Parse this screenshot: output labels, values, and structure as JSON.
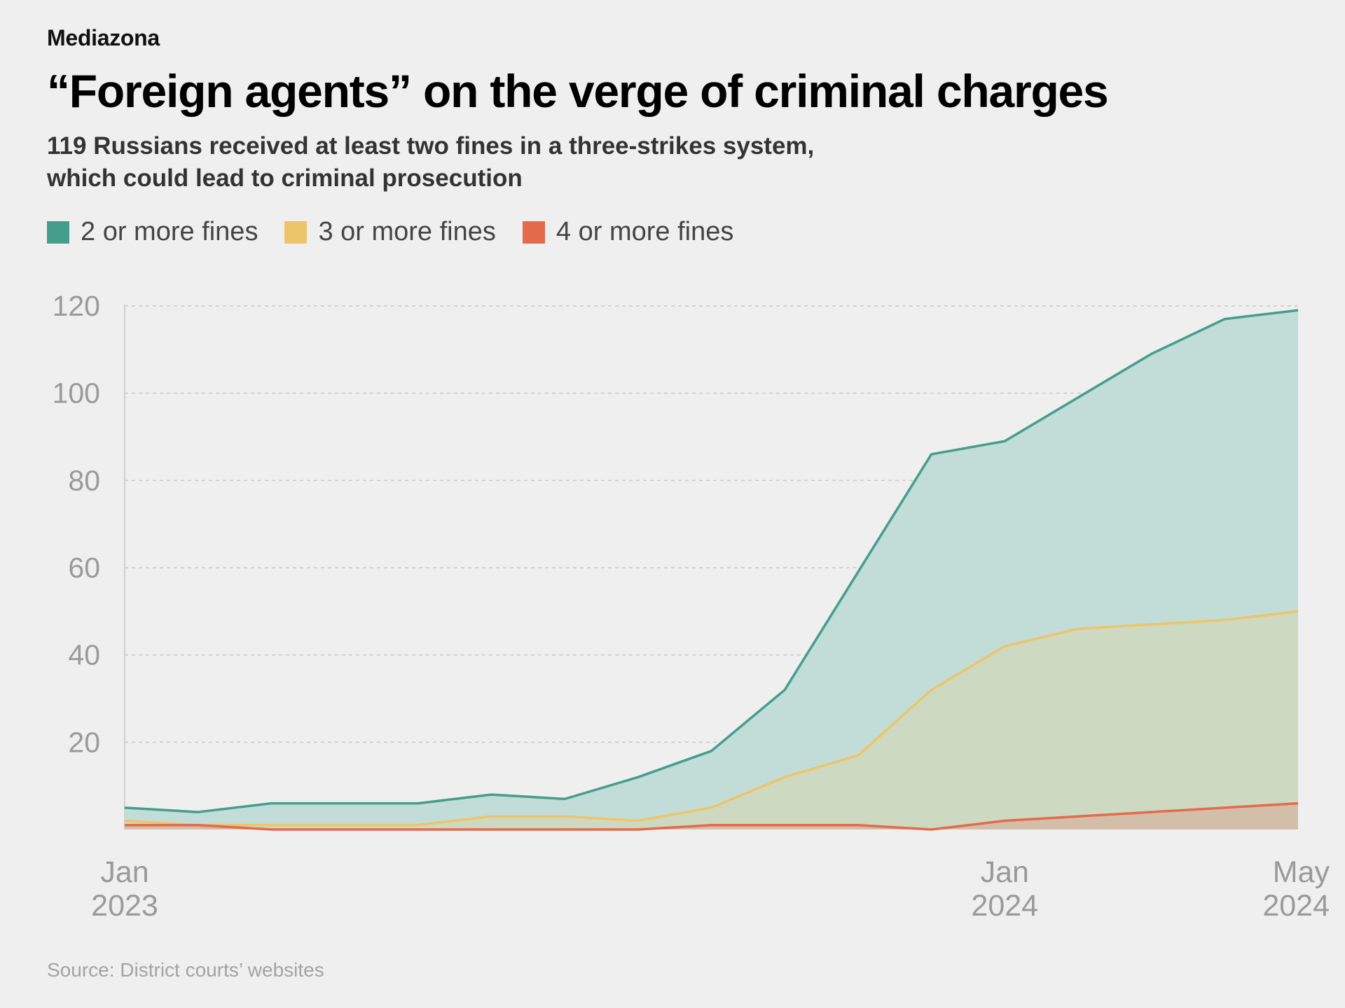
{
  "brand": "Mediazona",
  "title": "“Foreign agents” on the verge of criminal charges",
  "subtitle_lines": [
    "119 Russians received at least two fines in a three-strikes system,",
    "which could lead to criminal prosecution"
  ],
  "legend": [
    {
      "label": "2 or more fines",
      "color": "#459e8b"
    },
    {
      "label": "3 or more fines",
      "color": "#ecc56a"
    },
    {
      "label": "4 or more fines",
      "color": "#e36b4c"
    }
  ],
  "source": "Source: District courts’ websites",
  "chart_data": {
    "type": "area",
    "x": [
      "2023-01",
      "2023-02",
      "2023-03",
      "2023-04",
      "2023-05",
      "2023-06",
      "2023-07",
      "2023-08",
      "2023-09",
      "2023-10",
      "2023-11",
      "2023-12",
      "2024-01",
      "2024-02",
      "2024-03",
      "2024-04",
      "2024-05"
    ],
    "series": [
      {
        "name": "2 or more fines",
        "color": "#459e8b",
        "values": [
          5,
          4,
          6,
          6,
          6,
          8,
          7,
          12,
          18,
          32,
          59,
          86,
          89,
          99,
          109,
          117,
          119
        ]
      },
      {
        "name": "3 or more fines",
        "color": "#ecc56a",
        "values": [
          2,
          1,
          1,
          1,
          1,
          3,
          3,
          2,
          5,
          12,
          17,
          32,
          42,
          46,
          47,
          48,
          50
        ]
      },
      {
        "name": "4 or more fines",
        "color": "#e36b4c",
        "values": [
          1,
          1,
          0,
          0,
          0,
          0,
          0,
          0,
          1,
          1,
          1,
          0,
          2,
          3,
          4,
          5,
          6
        ]
      }
    ],
    "ylim": [
      0,
      120
    ],
    "y_ticks": [
      "20",
      "40",
      "60",
      "80",
      "100",
      "120"
    ],
    "x_ticks": [
      {
        "index": 0,
        "line1": "Jan",
        "line2": "2023"
      },
      {
        "index": 12,
        "line1": "Jan",
        "line2": "2024"
      },
      {
        "index": 16,
        "line1": "May",
        "line2": "2024"
      }
    ],
    "grid": true
  }
}
